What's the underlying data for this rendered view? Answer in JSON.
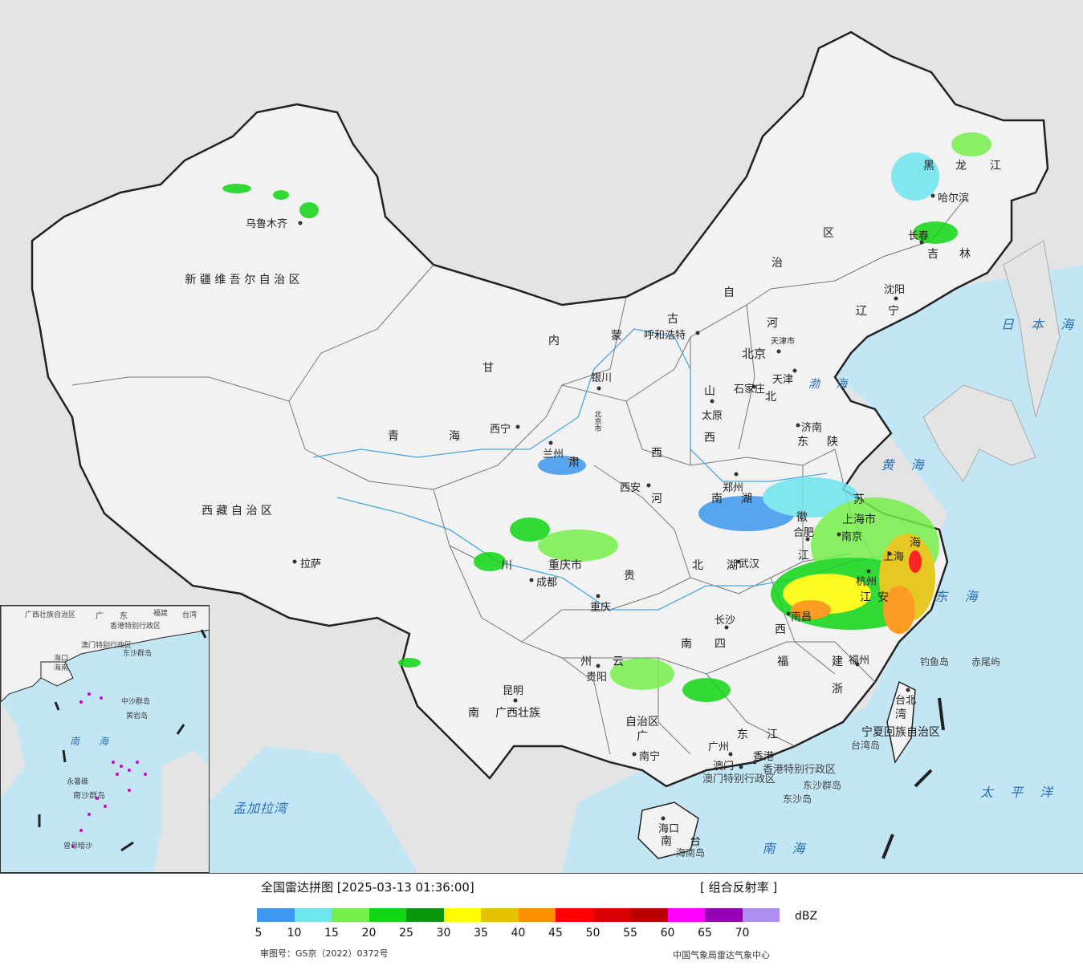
{
  "map": {
    "colors": {
      "sea": "#c3e6f5",
      "land_china": "#f2f2f2",
      "land_other": "#e4e4e4",
      "border": "#222222",
      "river": "#4aa6e0"
    },
    "province_labels": [
      "新 疆 维 吾 尔 自 治 区",
      "西 藏 自 治 区",
      "青",
      "海",
      "甘",
      "肃",
      "内",
      "蒙",
      "古",
      "自",
      "治",
      "区",
      "黑",
      "龙",
      "江",
      "吉",
      "林",
      "辽",
      "宁",
      "河",
      "北",
      "山",
      "西",
      "东",
      "陕",
      "西",
      "河",
      "南",
      "湖",
      "北",
      "湖",
      "南",
      "四",
      "川",
      "重庆市",
      "贵",
      "州",
      "云",
      "南",
      "广西壮族",
      "自治区",
      "广",
      "东",
      "江",
      "西",
      "福",
      "建",
      "浙",
      "江",
      "安",
      "徽",
      "江",
      "苏",
      "上海市",
      "海",
      "南",
      "台",
      "湾",
      "宁夏回族自治区",
      "北京市",
      "天津市"
    ],
    "cities": [
      "乌鲁木齐",
      "拉萨",
      "西宁",
      "兰州",
      "银川",
      "呼和浩特",
      "北京",
      "石家庄",
      "天津",
      "太原",
      "济南",
      "郑州",
      "西安",
      "成都",
      "重庆",
      "贵阳",
      "昆明",
      "南宁",
      "广州",
      "澳门",
      "香港",
      "长沙",
      "武汉",
      "南昌",
      "合肥",
      "南京",
      "上海",
      "杭州",
      "福州",
      "台北",
      "哈尔滨",
      "长春",
      "沈阳",
      "海口"
    ],
    "seas": [
      "日 本 海",
      "渤 海",
      "黄 海",
      "东 海",
      "南 海",
      "太 平 洋",
      "孟加拉湾"
    ],
    "islands": [
      "钓鱼岛",
      "赤尾屿",
      "台湾岛",
      "东沙群岛",
      "东沙岛",
      "海南岛",
      "香港特别行政区",
      "澳门特别行政区"
    ],
    "inset_labels": [
      "广西壮族自治区",
      "广",
      "东",
      "福建",
      "台湾",
      "香港特别行政区",
      "澳门特别行政区",
      "东沙群岛",
      "海口",
      "海南",
      "中沙群岛",
      "黄岩岛",
      "南",
      "海",
      "南沙群岛",
      "永暑礁",
      "曾母暗沙"
    ]
  },
  "footer": {
    "title": "全国雷达拼图 [2025-03-13 01:36:00]",
    "product": "[ 组合反射率 ]",
    "unit": "dBZ",
    "approval": "审图号：GS京（2022）0372号",
    "agency": "中国气象局雷达气象中心"
  },
  "legend": {
    "colors": [
      "#3c98ef",
      "#6de6ee",
      "#76f04a",
      "#10d615",
      "#0a960d",
      "#fefe00",
      "#e6c100",
      "#ff8e00",
      "#fe0000",
      "#d80000",
      "#b80000",
      "#ff00fe",
      "#9600b4",
      "#ae8ff0"
    ],
    "ticks": [
      "5",
      "10",
      "15",
      "20",
      "25",
      "30",
      "35",
      "40",
      "45",
      "50",
      "55",
      "60",
      "65",
      "70"
    ]
  }
}
